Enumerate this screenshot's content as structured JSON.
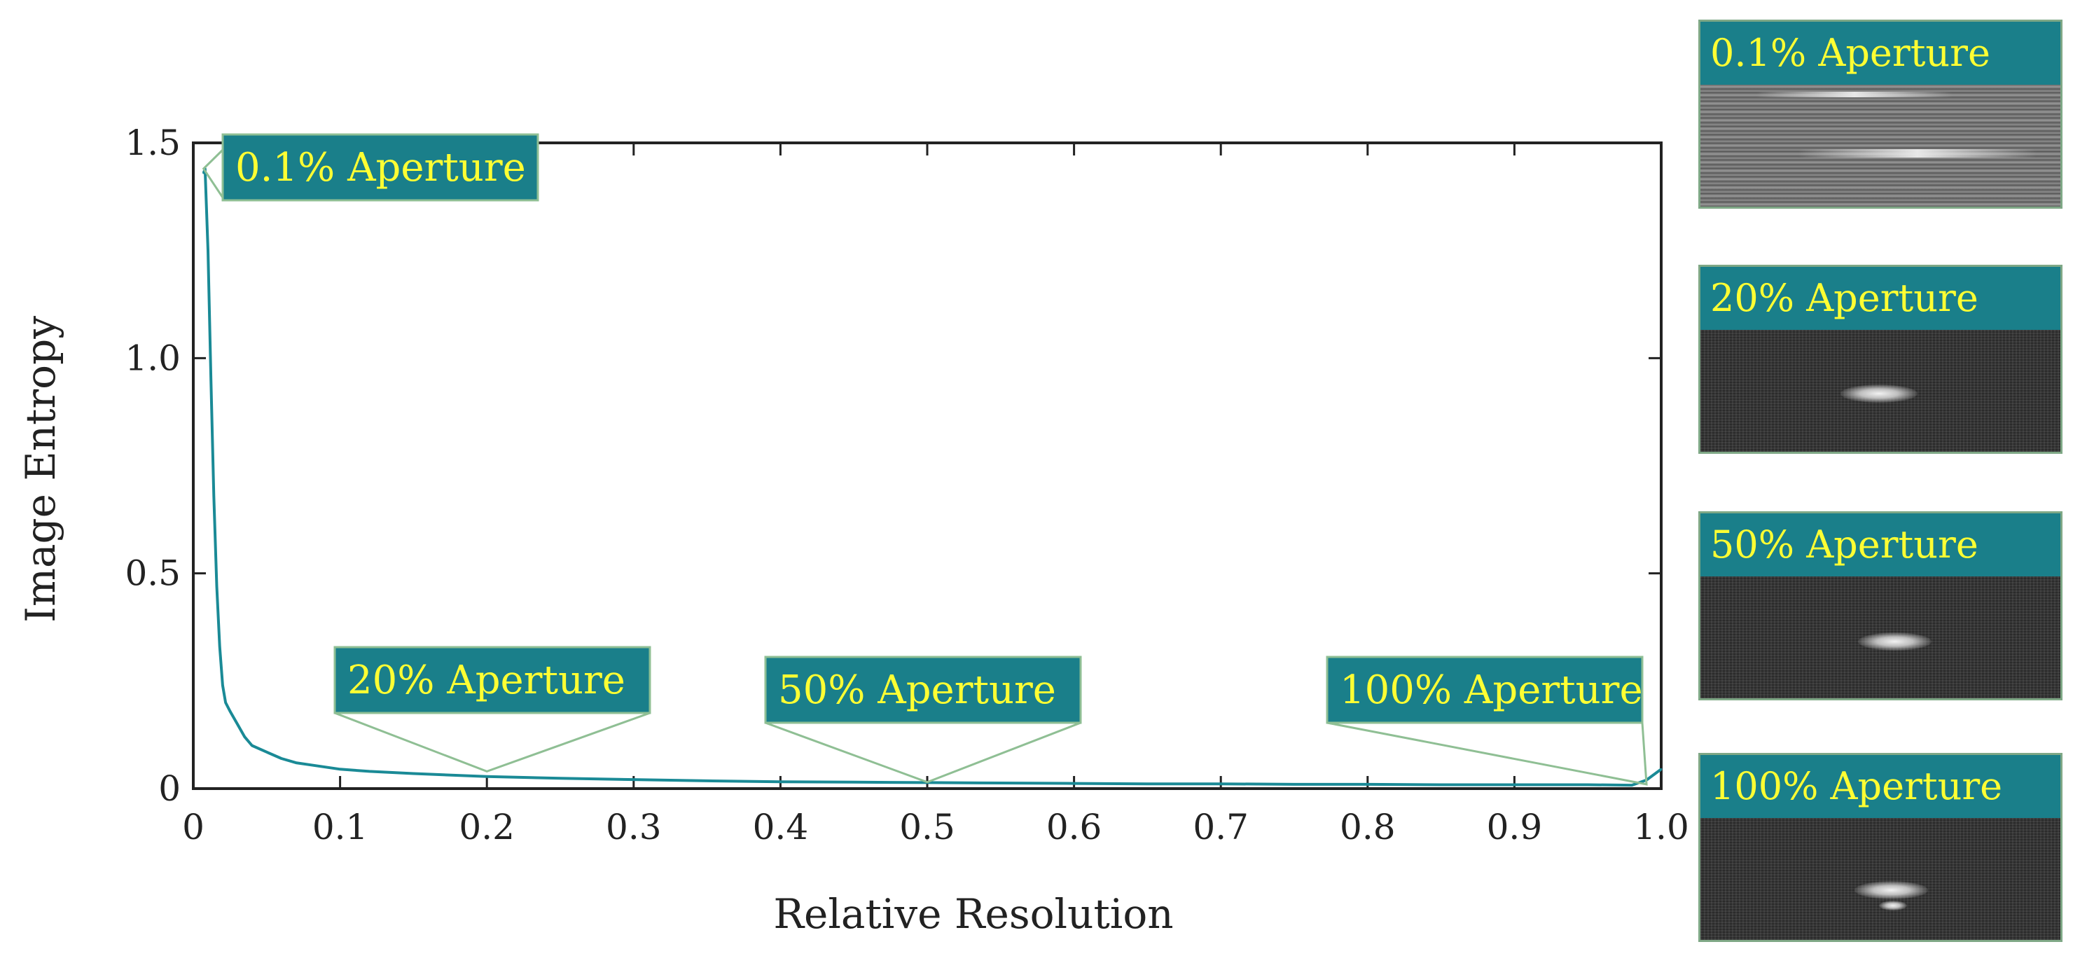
{
  "chart_data": {
    "type": "line",
    "xlabel": "Relative Resolution",
    "ylabel": "Image Entropy",
    "xlim": [
      0,
      1.0
    ],
    "ylim": [
      0,
      1.5
    ],
    "x_ticks": [
      "0",
      "0.1",
      "0.2",
      "0.3",
      "0.4",
      "0.5",
      "0.6",
      "0.7",
      "0.8",
      "0.9",
      "1.0"
    ],
    "y_ticks": [
      "0",
      "0.5",
      "1.0",
      "1.5"
    ],
    "grid": false,
    "series_color": "#1a8a96",
    "series": [
      {
        "x": [
          0.007,
          0.008,
          0.01,
          0.012,
          0.014,
          0.016,
          0.018,
          0.02,
          0.022,
          0.025,
          0.03,
          0.035,
          0.04,
          0.05,
          0.06,
          0.07,
          0.08,
          0.1,
          0.12,
          0.15,
          0.2,
          0.25,
          0.3,
          0.35,
          0.4,
          0.45,
          0.5,
          0.55,
          0.6,
          0.65,
          0.7,
          0.75,
          0.8,
          0.85,
          0.9,
          0.95,
          0.98,
          0.99,
          1.0
        ],
        "y": [
          1.43,
          1.44,
          1.25,
          0.95,
          0.68,
          0.47,
          0.33,
          0.24,
          0.2,
          0.18,
          0.15,
          0.12,
          0.1,
          0.085,
          0.07,
          0.06,
          0.055,
          0.045,
          0.04,
          0.035,
          0.028,
          0.024,
          0.021,
          0.018,
          0.016,
          0.015,
          0.014,
          0.013,
          0.012,
          0.011,
          0.011,
          0.01,
          0.01,
          0.009,
          0.009,
          0.009,
          0.008,
          0.02,
          0.045
        ]
      }
    ],
    "annotations": [
      {
        "label": "0.1% Aperture",
        "x": 0.007,
        "y": 1.44
      },
      {
        "label": "20% Aperture",
        "x": 0.2,
        "y": 0.04
      },
      {
        "label": "50% Aperture",
        "x": 0.5,
        "y": 0.015
      },
      {
        "label": "100% Aperture",
        "x": 0.99,
        "y": 0.01
      }
    ],
    "callout_color": "#1a7f8a",
    "callout_text_color": "#ffff33"
  },
  "thumbnails": [
    {
      "label": "0.1% Aperture"
    },
    {
      "label": "20% Aperture"
    },
    {
      "label": "50% Aperture"
    },
    {
      "label": "100% Aperture"
    }
  ]
}
